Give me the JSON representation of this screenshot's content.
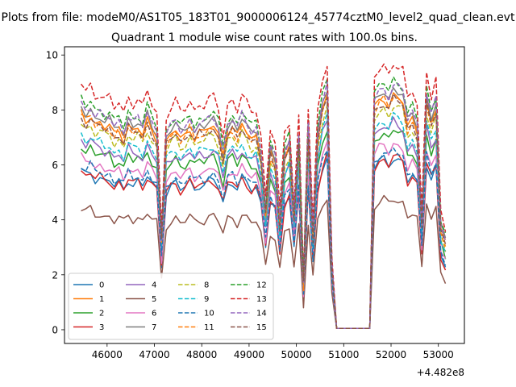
{
  "chart_data": {
    "type": "line",
    "suptitle": "Plots from file: modeM0/AS1T05_183T01_9000006124_45774cztM0_level2_quad_clean.evt",
    "title": "Quadrant 1 module wise count rates with 100.0s bins.",
    "xlabel": "",
    "ylabel": "",
    "x_offset_label": "+4.482e8",
    "xlim": [
      45100,
      53550
    ],
    "ylim": [
      -0.5,
      10.3
    ],
    "x_ticks": [
      46000,
      47000,
      48000,
      49000,
      50000,
      51000,
      52000,
      53000
    ],
    "x_tick_labels": [
      "46000",
      "47000",
      "48000",
      "49000",
      "50000",
      "51000",
      "52000",
      "53000"
    ],
    "y_ticks": [
      0,
      2,
      4,
      6,
      8,
      10
    ],
    "y_tick_labels": [
      "0",
      "2",
      "4",
      "6",
      "8",
      "10"
    ],
    "grid": false,
    "legend_placement": "lower-left",
    "legend_columns": 4,
    "x": [
      45450,
      45550,
      45650,
      45750,
      45850,
      45950,
      46050,
      46150,
      46250,
      46350,
      46450,
      46550,
      46650,
      46750,
      46850,
      46950,
      47050,
      47150,
      47250,
      47350,
      47450,
      47550,
      47650,
      47750,
      47850,
      47950,
      48050,
      48150,
      48250,
      48350,
      48450,
      48550,
      48650,
      48750,
      48850,
      48950,
      49050,
      49150,
      49250,
      49350,
      49450,
      49550,
      49650,
      49750,
      49850,
      49950,
      50050,
      50150,
      50250,
      50350,
      50450,
      50550,
      50650,
      50750,
      50850,
      50950,
      51050,
      51150,
      51250,
      51350,
      51450,
      51550,
      51650,
      51750,
      51850,
      51950,
      52050,
      52150,
      52250,
      52350,
      52450,
      52550,
      52650,
      52750,
      52850,
      52950,
      53050,
      53150
    ],
    "base_profile": [
      5.8,
      5.6,
      5.75,
      5.5,
      5.55,
      5.4,
      5.45,
      5.2,
      5.35,
      5.1,
      5.5,
      5.3,
      5.4,
      5.2,
      5.6,
      5.3,
      5.1,
      2.4,
      5.0,
      5.2,
      5.35,
      5.1,
      5.2,
      5.4,
      5.15,
      5.3,
      5.25,
      5.4,
      5.45,
      5.2,
      4.6,
      5.3,
      5.4,
      5.15,
      5.5,
      5.3,
      5.1,
      5.2,
      4.6,
      3.1,
      4.7,
      4.4,
      2.8,
      4.6,
      4.9,
      3.0,
      5.0,
      1.2,
      5.2,
      2.5,
      5.1,
      5.9,
      6.3,
      1.7,
      0.05,
      0.05,
      0.05,
      0.05,
      0.05,
      0.05,
      0.05,
      0.05,
      5.9,
      6.1,
      6.2,
      6.0,
      6.3,
      6.2,
      6.1,
      5.4,
      5.6,
      5.3,
      2.8,
      6.1,
      5.5,
      5.9,
      2.7,
      2.3
    ],
    "series": [
      {
        "name": "0",
        "color": "#1f77b4",
        "dash": "solid",
        "scale": 1.0
      },
      {
        "name": "1",
        "color": "#ff7f0e",
        "dash": "solid",
        "scale": 1.36
      },
      {
        "name": "2",
        "color": "#2ca02c",
        "dash": "solid",
        "scale": 1.16
      },
      {
        "name": "3",
        "color": "#d62728",
        "dash": "solid",
        "scale": 1.0
      },
      {
        "name": "4",
        "color": "#9467bd",
        "dash": "solid",
        "scale": 1.2
      },
      {
        "name": "5",
        "color": "#8c564b",
        "dash": "solid",
        "scale": 0.76
      },
      {
        "name": "6",
        "color": "#e377c2",
        "dash": "solid",
        "scale": 1.08
      },
      {
        "name": "7",
        "color": "#7f7f7f",
        "dash": "solid",
        "scale": 1.4
      },
      {
        "name": "8",
        "color": "#bcbd22",
        "dash": "dashed",
        "scale": 1.3
      },
      {
        "name": "9",
        "color": "#17becf",
        "dash": "dashed",
        "scale": 1.23
      },
      {
        "name": "10",
        "color": "#1f77b4",
        "dash": "dashed",
        "scale": 1.04
      },
      {
        "name": "11",
        "color": "#ff7f0e",
        "dash": "dashed",
        "scale": 1.35
      },
      {
        "name": "12",
        "color": "#2ca02c",
        "dash": "dashed",
        "scale": 1.45
      },
      {
        "name": "13",
        "color": "#d62728",
        "dash": "dashed",
        "scale": 1.55
      },
      {
        "name": "14",
        "color": "#9467bd",
        "dash": "dashed",
        "scale": 1.42
      },
      {
        "name": "15",
        "color": "#8c564b",
        "dash": "dashed",
        "scale": 1.34
      }
    ]
  }
}
